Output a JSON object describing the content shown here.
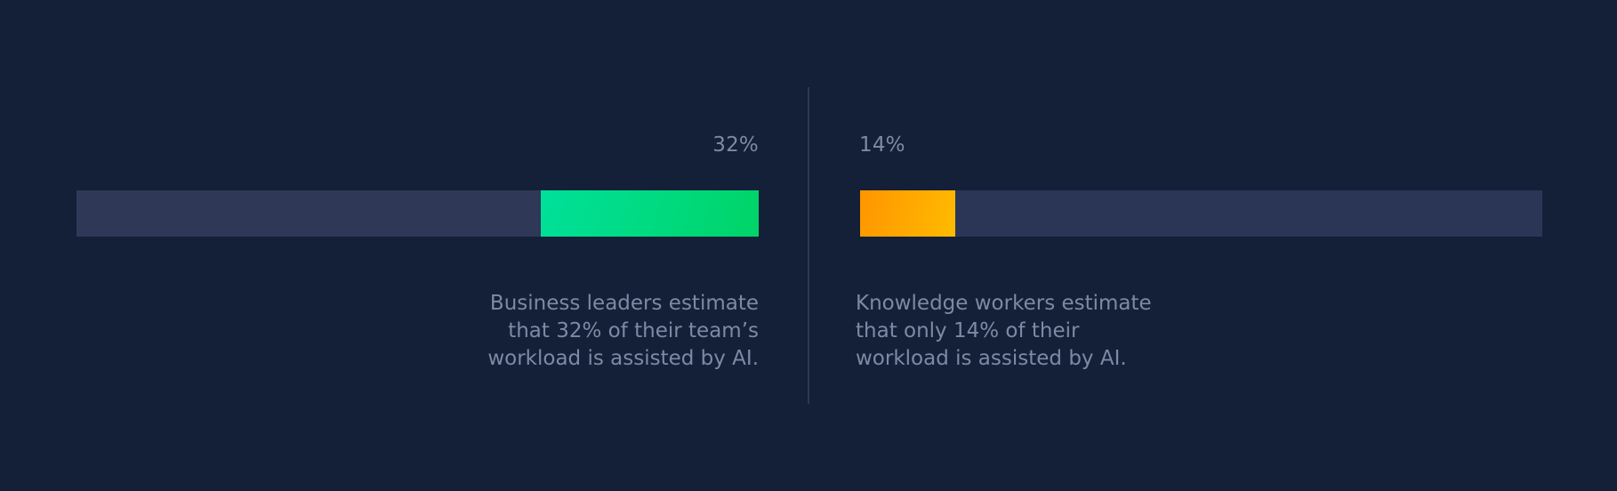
{
  "chart_data": [
    {
      "type": "bar",
      "categories": [
        "Business leaders estimate"
      ],
      "values": [
        32
      ],
      "ylim": [
        0,
        100
      ],
      "value_label": "32%",
      "annotation_lines": [
        "Business leaders estimate",
        "that 32% of their team’s",
        "workload is assisted by AI."
      ],
      "colors": {
        "fill_start": "#00E09A",
        "fill_end": "#00D468",
        "track": "#2F3856"
      }
    },
    {
      "type": "bar",
      "categories": [
        "Knowledge workers estimate"
      ],
      "values": [
        14
      ],
      "ylim": [
        0,
        100
      ],
      "value_label": "14%",
      "annotation_lines": [
        "Knowledge workers estimate",
        "that only 14% of their",
        "workload is assisted by AI."
      ],
      "colors": {
        "fill_start": "#FF9500",
        "fill_end": "#FFBB00",
        "track": "#2B3657"
      }
    }
  ],
  "colors": {
    "background": "#141F38",
    "divider": "#2C3853",
    "text": "#7D8AA5"
  }
}
